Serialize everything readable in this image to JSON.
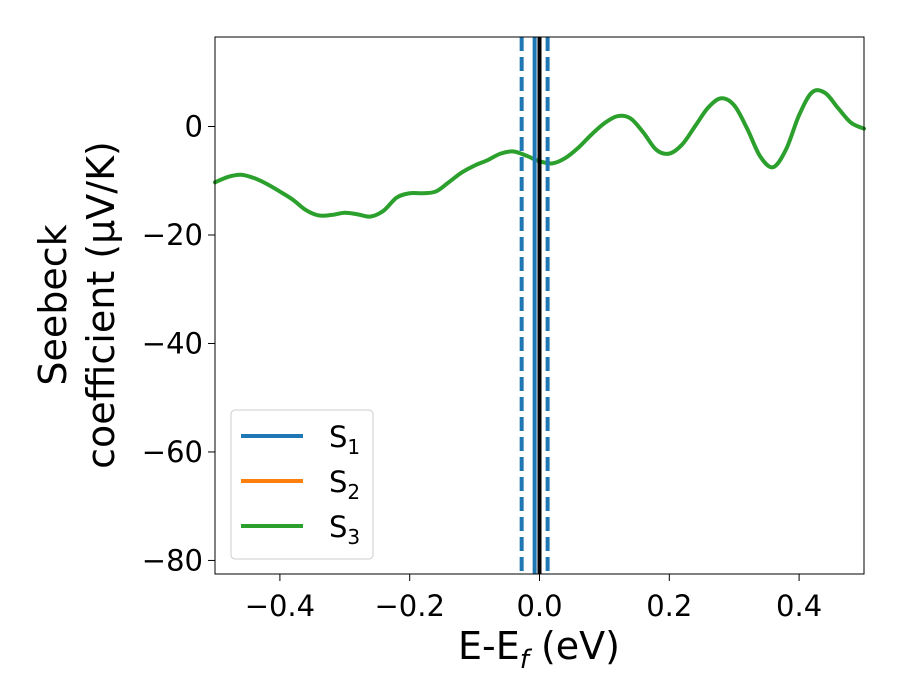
{
  "chart_data": {
    "type": "line",
    "title": "",
    "xlabel": {
      "base": "E-E",
      "sub": "f",
      "suffix": " (eV)"
    },
    "ylabel_lines": [
      "Seebeck",
      "coefficient  (μV/K)"
    ],
    "xlim": [
      -0.5,
      0.5
    ],
    "ylim": [
      -82.5,
      16.5
    ],
    "x_ticks": [
      -0.4,
      -0.2,
      0.0,
      0.2,
      0.4
    ],
    "x_tick_labels": [
      "−0.4",
      "−0.2",
      "0.0",
      "0.2",
      "0.4"
    ],
    "y_ticks": [
      0,
      -20,
      -40,
      -60,
      -80
    ],
    "y_tick_labels": [
      "0",
      "−20",
      "−40",
      "−60",
      "−80"
    ],
    "grid": false,
    "legend_position": "lower-left",
    "series": [
      {
        "name": "S",
        "name_sub": "1",
        "color": "#1f77b4",
        "visible": false,
        "x": [],
        "y": []
      },
      {
        "name": "S",
        "name_sub": "2",
        "color": "#ff7f0e",
        "visible": false,
        "x": [],
        "y": []
      },
      {
        "name": "S",
        "name_sub": "3",
        "color": "#2ca02c",
        "visible": true,
        "x": [
          -0.5,
          -0.48,
          -0.46,
          -0.44,
          -0.42,
          -0.4,
          -0.38,
          -0.36,
          -0.34,
          -0.32,
          -0.3,
          -0.28,
          -0.26,
          -0.24,
          -0.22,
          -0.2,
          -0.18,
          -0.16,
          -0.14,
          -0.12,
          -0.1,
          -0.08,
          -0.06,
          -0.04,
          -0.02,
          0.0,
          0.02,
          0.04,
          0.06,
          0.08,
          0.1,
          0.12,
          0.14,
          0.16,
          0.18,
          0.2,
          0.22,
          0.24,
          0.26,
          0.28,
          0.3,
          0.32,
          0.34,
          0.36,
          0.38,
          0.4,
          0.42,
          0.44,
          0.46,
          0.48,
          0.5
        ],
        "y": [
          -10.3,
          -9.3,
          -8.9,
          -9.5,
          -10.6,
          -12.0,
          -13.5,
          -15.4,
          -16.4,
          -16.3,
          -15.9,
          -16.2,
          -16.6,
          -15.5,
          -13.1,
          -12.3,
          -12.3,
          -12.0,
          -10.3,
          -8.5,
          -7.2,
          -6.2,
          -5.0,
          -4.6,
          -5.4,
          -6.4,
          -6.8,
          -5.8,
          -3.9,
          -1.5,
          0.6,
          1.9,
          1.5,
          -1.1,
          -4.3,
          -5.0,
          -3.3,
          0.1,
          3.5,
          5.2,
          3.9,
          -0.4,
          -5.5,
          -7.5,
          -4.2,
          2.1,
          6.3,
          6.2,
          3.4,
          0.7,
          -0.4
        ]
      }
    ],
    "vertical_lines": [
      {
        "x": -0.0275,
        "color": "#1f77b4",
        "style": "dashed"
      },
      {
        "x": 0.0125,
        "color": "#1f77b4",
        "style": "dashed"
      },
      {
        "x": -0.0075,
        "color": "#1f77b4",
        "style": "solid"
      },
      {
        "x": 0.0,
        "color": "#000000",
        "style": "solid"
      }
    ]
  }
}
